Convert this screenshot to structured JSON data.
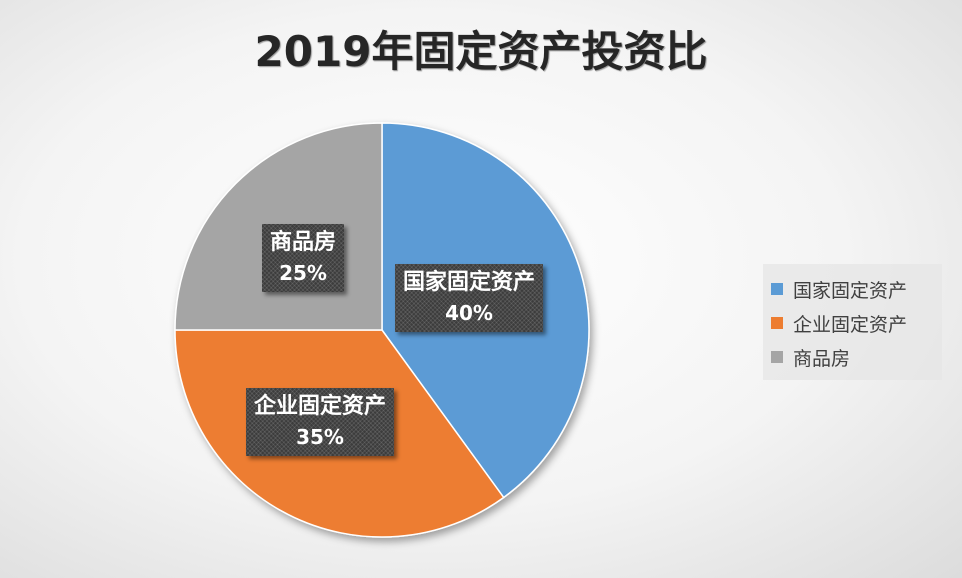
{
  "chart_data": {
    "type": "pie",
    "title": "2019年固定资产投资比",
    "categories": [
      "国家固定资产",
      "企业固定资产",
      "商品房"
    ],
    "values": [
      40,
      35,
      25
    ],
    "value_labels": [
      "40%",
      "35%",
      "25%"
    ],
    "colors": [
      "#5b9bd5",
      "#ed7d31",
      "#a5a5a5"
    ],
    "legend_position": "right",
    "start_angle": "12 o'clock, clockwise"
  }
}
